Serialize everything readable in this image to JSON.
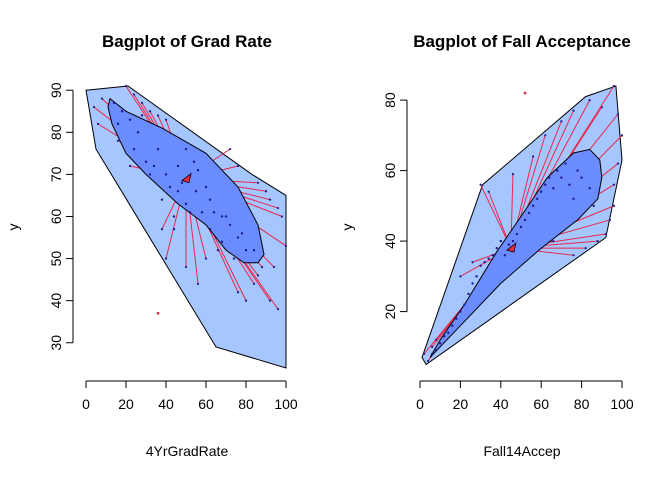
{
  "chart_data": [
    {
      "type": "bagplot",
      "title": "Bagplot of Grad Rate",
      "xlabel": "4YrGradRate",
      "ylabel": "y",
      "xlim": [
        0,
        100
      ],
      "ylim": [
        24,
        91
      ],
      "xticks": [
        0,
        20,
        40,
        60,
        80,
        100
      ],
      "yticks": [
        30,
        40,
        50,
        60,
        70,
        80,
        90
      ],
      "colors": {
        "fence": "#a6c6ff",
        "bag": "#6b8cff",
        "whisker": "#e8284a",
        "point": "#1a1a8c",
        "outlier": "#e8284a",
        "center": "#e8284a"
      },
      "center": [
        50,
        69
      ],
      "fence": [
        [
          0,
          90
        ],
        [
          21,
          91
        ],
        [
          83,
          70
        ],
        [
          100,
          65
        ],
        [
          100,
          24
        ],
        [
          65,
          29
        ],
        [
          5,
          76
        ],
        [
          0,
          90
        ]
      ],
      "bag": [
        [
          12,
          88
        ],
        [
          20,
          85
        ],
        [
          38,
          81
        ],
        [
          60,
          75
        ],
        [
          76,
          67
        ],
        [
          86,
          58
        ],
        [
          89,
          51
        ],
        [
          86,
          49
        ],
        [
          79,
          49
        ],
        [
          70,
          52
        ],
        [
          60,
          58
        ],
        [
          46,
          63
        ],
        [
          30,
          70
        ],
        [
          20,
          75
        ],
        [
          13,
          82
        ],
        [
          11,
          86
        ],
        [
          12,
          88
        ]
      ],
      "points": [
        [
          14,
          87
        ],
        [
          18,
          85
        ],
        [
          22,
          83
        ],
        [
          26,
          80
        ],
        [
          28,
          84
        ],
        [
          24,
          76
        ],
        [
          30,
          73
        ],
        [
          34,
          72
        ],
        [
          36,
          76
        ],
        [
          40,
          70
        ],
        [
          42,
          67
        ],
        [
          44,
          60
        ],
        [
          46,
          66
        ],
        [
          48,
          68
        ],
        [
          50,
          63
        ],
        [
          52,
          61
        ],
        [
          55,
          66
        ],
        [
          58,
          61
        ],
        [
          60,
          67
        ],
        [
          62,
          57
        ],
        [
          64,
          61
        ],
        [
          66,
          52
        ],
        [
          68,
          54
        ],
        [
          70,
          60
        ],
        [
          72,
          58
        ],
        [
          74,
          50
        ],
        [
          76,
          55
        ],
        [
          78,
          56
        ],
        [
          80,
          52
        ],
        [
          54,
          73
        ],
        [
          56,
          71
        ],
        [
          38,
          64
        ],
        [
          46,
          72
        ],
        [
          62,
          64
        ],
        [
          84,
          52
        ],
        [
          44,
          57
        ],
        [
          50,
          76
        ],
        [
          68,
          60
        ],
        [
          32,
          70
        ],
        [
          16,
          82
        ]
      ],
      "whiskers": [
        [
          8,
          88
        ],
        [
          4,
          86
        ],
        [
          6,
          82
        ],
        [
          20,
          91
        ],
        [
          24,
          89
        ],
        [
          28,
          87
        ],
        [
          32,
          85
        ],
        [
          36,
          84
        ],
        [
          40,
          83
        ],
        [
          22,
          72
        ],
        [
          16,
          78
        ],
        [
          72,
          76
        ],
        [
          76,
          72
        ],
        [
          86,
          68
        ],
        [
          90,
          66
        ],
        [
          92,
          64
        ],
        [
          96,
          62
        ],
        [
          98,
          60
        ],
        [
          100,
          53
        ],
        [
          88,
          48
        ],
        [
          86,
          46
        ],
        [
          84,
          44
        ],
        [
          94,
          48
        ],
        [
          96,
          38
        ],
        [
          92,
          40
        ],
        [
          80,
          40
        ],
        [
          76,
          42
        ],
        [
          60,
          50
        ],
        [
          56,
          44
        ],
        [
          50,
          48
        ],
        [
          38,
          57
        ],
        [
          40,
          50
        ]
      ],
      "outliers": [
        [
          36,
          37
        ]
      ]
    },
    {
      "type": "bagplot",
      "title": "Bagplot of Fall Acceptance",
      "xlabel": "Fall14Accep",
      "ylabel": "y",
      "xlim": [
        0,
        100
      ],
      "ylim": [
        4,
        84
      ],
      "xticks": [
        0,
        20,
        40,
        60,
        80,
        100
      ],
      "yticks": [
        20,
        40,
        60,
        80
      ],
      "colors": {
        "fence": "#a6c6ff",
        "bag": "#6b8cff",
        "whisker": "#e8284a",
        "point": "#1a1a8c",
        "outlier": "#e8284a",
        "center": "#e8284a"
      },
      "center": [
        45,
        38
      ],
      "fence": [
        [
          1,
          7
        ],
        [
          3,
          5
        ],
        [
          92,
          41
        ],
        [
          100,
          63
        ],
        [
          97,
          84
        ],
        [
          82,
          81
        ],
        [
          31,
          56
        ],
        [
          1,
          7
        ]
      ],
      "bag": [
        [
          5,
          7
        ],
        [
          20,
          16
        ],
        [
          40,
          28
        ],
        [
          60,
          38
        ],
        [
          78,
          46
        ],
        [
          88,
          52
        ],
        [
          90,
          58
        ],
        [
          89,
          63
        ],
        [
          84,
          66
        ],
        [
          76,
          65
        ],
        [
          63,
          58
        ],
        [
          50,
          47
        ],
        [
          38,
          37
        ],
        [
          22,
          22
        ],
        [
          10,
          12
        ],
        [
          5,
          7
        ]
      ],
      "points": [
        [
          6,
          8
        ],
        [
          8,
          9
        ],
        [
          10,
          11
        ],
        [
          12,
          13
        ],
        [
          14,
          14
        ],
        [
          16,
          16
        ],
        [
          18,
          18
        ],
        [
          20,
          20
        ],
        [
          22,
          22
        ],
        [
          24,
          25
        ],
        [
          26,
          28
        ],
        [
          28,
          30
        ],
        [
          30,
          33
        ],
        [
          32,
          34
        ],
        [
          34,
          35
        ],
        [
          36,
          36
        ],
        [
          38,
          38
        ],
        [
          40,
          40
        ],
        [
          42,
          36
        ],
        [
          44,
          39
        ],
        [
          46,
          40
        ],
        [
          48,
          42
        ],
        [
          50,
          44
        ],
        [
          52,
          46
        ],
        [
          54,
          48
        ],
        [
          56,
          50
        ],
        [
          58,
          52
        ],
        [
          60,
          54
        ],
        [
          62,
          56
        ],
        [
          64,
          58
        ],
        [
          66,
          55
        ],
        [
          68,
          60
        ],
        [
          70,
          58
        ],
        [
          72,
          62
        ],
        [
          74,
          56
        ],
        [
          76,
          52
        ],
        [
          78,
          60
        ],
        [
          80,
          58
        ],
        [
          84,
          55
        ],
        [
          86,
          50
        ]
      ],
      "whiskers": [
        [
          2,
          8
        ],
        [
          4,
          6
        ],
        [
          8,
          12
        ],
        [
          6,
          10
        ],
        [
          30,
          56
        ],
        [
          34,
          54
        ],
        [
          46,
          59
        ],
        [
          56,
          64
        ],
        [
          62,
          70
        ],
        [
          70,
          74
        ],
        [
          76,
          77
        ],
        [
          84,
          80
        ],
        [
          90,
          78
        ],
        [
          96,
          84
        ],
        [
          98,
          76
        ],
        [
          100,
          70
        ],
        [
          98,
          62
        ],
        [
          96,
          56
        ],
        [
          96,
          50
        ],
        [
          94,
          46
        ],
        [
          92,
          42
        ],
        [
          88,
          40
        ],
        [
          82,
          38
        ],
        [
          76,
          36
        ],
        [
          66,
          40
        ],
        [
          20,
          30
        ],
        [
          26,
          34
        ],
        [
          14,
          14
        ]
      ],
      "outliers": [
        [
          52,
          82
        ]
      ]
    }
  ]
}
